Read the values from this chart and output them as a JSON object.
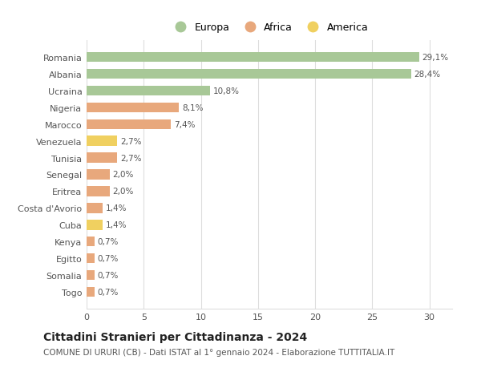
{
  "categories": [
    "Togo",
    "Somalia",
    "Egitto",
    "Kenya",
    "Cuba",
    "Costa d'Avorio",
    "Eritrea",
    "Senegal",
    "Tunisia",
    "Venezuela",
    "Marocco",
    "Nigeria",
    "Ucraina",
    "Albania",
    "Romania"
  ],
  "values": [
    0.7,
    0.7,
    0.7,
    0.7,
    1.4,
    1.4,
    2.0,
    2.0,
    2.7,
    2.7,
    7.4,
    8.1,
    10.8,
    28.4,
    29.1
  ],
  "continents": [
    "Africa",
    "Africa",
    "Africa",
    "Africa",
    "America",
    "Africa",
    "Africa",
    "Africa",
    "Africa",
    "America",
    "Africa",
    "Africa",
    "Europa",
    "Europa",
    "Europa"
  ],
  "labels": [
    "0,7%",
    "0,7%",
    "0,7%",
    "0,7%",
    "1,4%",
    "1,4%",
    "2,0%",
    "2,0%",
    "2,7%",
    "2,7%",
    "7,4%",
    "8,1%",
    "10,8%",
    "28,4%",
    "29,1%"
  ],
  "colors": {
    "Europa": "#a8c897",
    "Africa": "#e8a87c",
    "America": "#f0d060"
  },
  "legend_labels": [
    "Europa",
    "Africa",
    "America"
  ],
  "legend_colors": [
    "#a8c897",
    "#e8a87c",
    "#f0d060"
  ],
  "title": "Cittadini Stranieri per Cittadinanza - 2024",
  "subtitle": "COMUNE DI URURI (CB) - Dati ISTAT al 1° gennaio 2024 - Elaborazione TUTTITALIA.IT",
  "xlim": [
    0,
    32
  ],
  "xticks": [
    0,
    5,
    10,
    15,
    20,
    25,
    30
  ],
  "background_color": "#ffffff",
  "grid_color": "#dddddd",
  "bar_height": 0.6,
  "label_fontsize": 7.5,
  "title_fontsize": 10,
  "subtitle_fontsize": 7.5,
  "ytick_fontsize": 8,
  "xtick_fontsize": 8,
  "legend_fontsize": 9
}
